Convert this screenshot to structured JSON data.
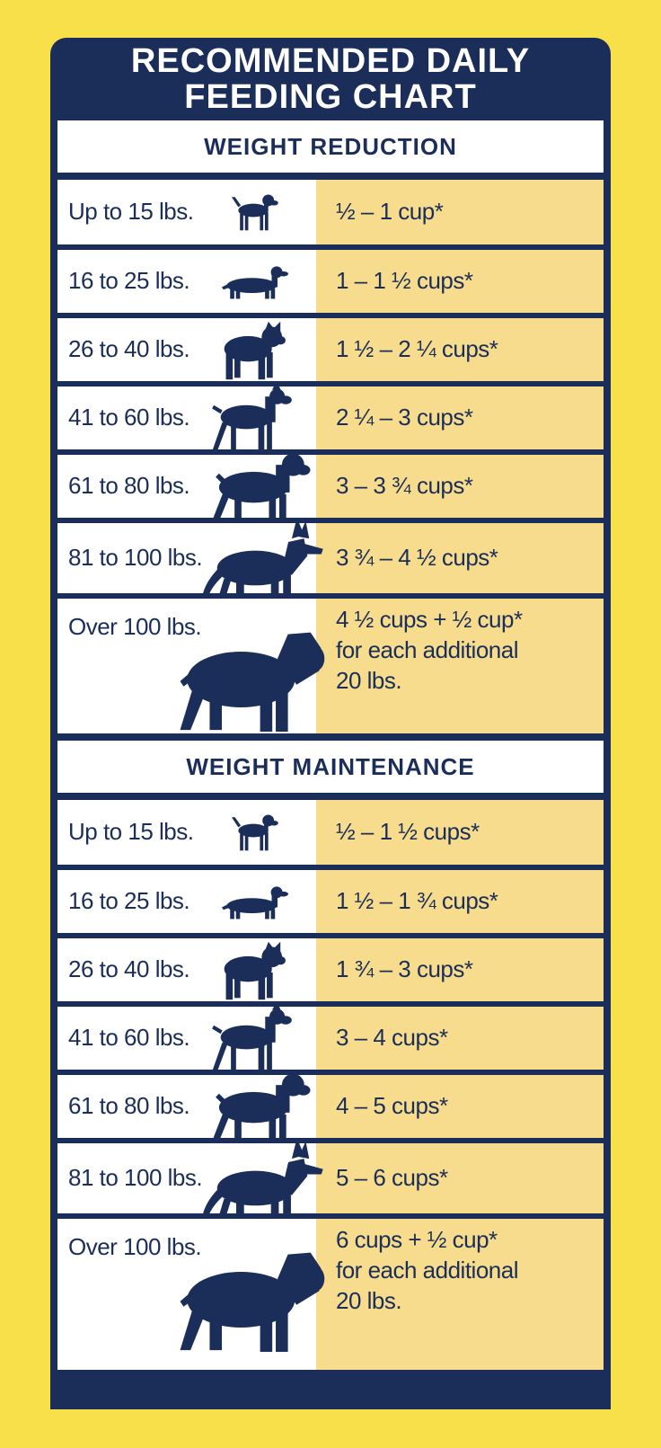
{
  "title": {
    "line1": "RECOMMENDED DAILY",
    "line2": "FEEDING CHART"
  },
  "sections": [
    {
      "heading": "WEIGHT REDUCTION",
      "rows": [
        {
          "weight": "Up to 15 lbs.",
          "amount": [
            "½ – 1 cup*"
          ],
          "dog": "beagle-icon"
        },
        {
          "weight": "16 to 25 lbs.",
          "amount": [
            "1 – 1 ½ cups*"
          ],
          "dog": "dachshund-icon"
        },
        {
          "weight": "26 to 40 lbs.",
          "amount": [
            "1 ½ – 2 ¼ cups*"
          ],
          "dog": "bulldog-icon"
        },
        {
          "weight": "41 to 60 lbs.",
          "amount": [
            "2 ¼ – 3 cups*"
          ],
          "dog": "boxer-icon"
        },
        {
          "weight": "61 to 80 lbs.",
          "amount": [
            "3 – 3 ¾ cups*"
          ],
          "dog": "rottweiler-icon"
        },
        {
          "weight": "81 to 100 lbs.",
          "amount": [
            "3 ¾ – 4 ½ cups*"
          ],
          "dog": "shepherd-icon"
        },
        {
          "weight": "Over 100 lbs.",
          "amount": [
            "4 ½ cups + ½ cup*",
            "for each additional",
            "20 lbs."
          ],
          "dog": "mastiff-icon"
        }
      ]
    },
    {
      "heading": "WEIGHT MAINTENANCE",
      "rows": [
        {
          "weight": "Up to 15 lbs.",
          "amount": [
            "½ – 1 ½ cups*"
          ],
          "dog": "beagle-icon"
        },
        {
          "weight": "16 to 25 lbs.",
          "amount": [
            "1 ½ – 1 ¾ cups*"
          ],
          "dog": "dachshund-icon"
        },
        {
          "weight": "26 to 40 lbs.",
          "amount": [
            "1 ¾ – 3 cups*"
          ],
          "dog": "bulldog-icon"
        },
        {
          "weight": "41 to 60 lbs.",
          "amount": [
            "3 – 4 cups*"
          ],
          "dog": "boxer-icon"
        },
        {
          "weight": "61 to 80 lbs.",
          "amount": [
            "4 – 5 cups*"
          ],
          "dog": "rottweiler-icon"
        },
        {
          "weight": "81 to 100 lbs.",
          "amount": [
            "5 – 6 cups*"
          ],
          "dog": "shepherd-icon"
        },
        {
          "weight": "Over 100 lbs.",
          "amount": [
            "6 cups + ½ cup*",
            "for each additional",
            "20 lbs."
          ],
          "dog": "mastiff-icon"
        }
      ]
    }
  ],
  "colors": {
    "navy": "#1b2e5a",
    "yellow": "#f7e04a",
    "cream": "#f6dc8c"
  }
}
